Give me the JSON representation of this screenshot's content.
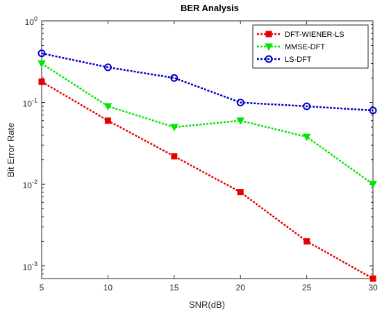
{
  "chart_data": {
    "type": "line",
    "title": "BER Analysis",
    "xlabel": "SNR(dB)",
    "ylabel": "Bit Error Rate",
    "x": [
      5,
      10,
      15,
      20,
      25,
      30
    ],
    "xlim": [
      5,
      30
    ],
    "ylim": [
      0.0007,
      1
    ],
    "yscale": "log",
    "grid": false,
    "legend_position": "top-right",
    "xticks": [
      {
        "value": 5,
        "label": "5"
      },
      {
        "value": 10,
        "label": "10"
      },
      {
        "value": 15,
        "label": "15"
      },
      {
        "value": 20,
        "label": "20"
      },
      {
        "value": 25,
        "label": "25"
      },
      {
        "value": 30,
        "label": "30"
      }
    ],
    "yticks": [
      {
        "value": 1,
        "base": "10",
        "exp": "0"
      },
      {
        "value": 0.1,
        "base": "10",
        "exp": "-1"
      },
      {
        "value": 0.01,
        "base": "10",
        "exp": "-2"
      },
      {
        "value": 0.001,
        "base": "10",
        "exp": "-3"
      }
    ],
    "series": [
      {
        "name": "DFT-WIENER-LS",
        "color": "#e60000",
        "marker": "square",
        "values": [
          0.18,
          0.06,
          0.022,
          0.008,
          0.002,
          0.0007
        ]
      },
      {
        "name": "MMSE-DFT",
        "color": "#00e600",
        "marker": "triangle-down",
        "values": [
          0.3,
          0.09,
          0.05,
          0.06,
          0.038,
          0.01
        ]
      },
      {
        "name": "LS-DFT",
        "color": "#0000c8",
        "marker": "circle",
        "values": [
          0.4,
          0.27,
          0.2,
          0.1,
          0.09,
          0.08
        ]
      }
    ]
  }
}
